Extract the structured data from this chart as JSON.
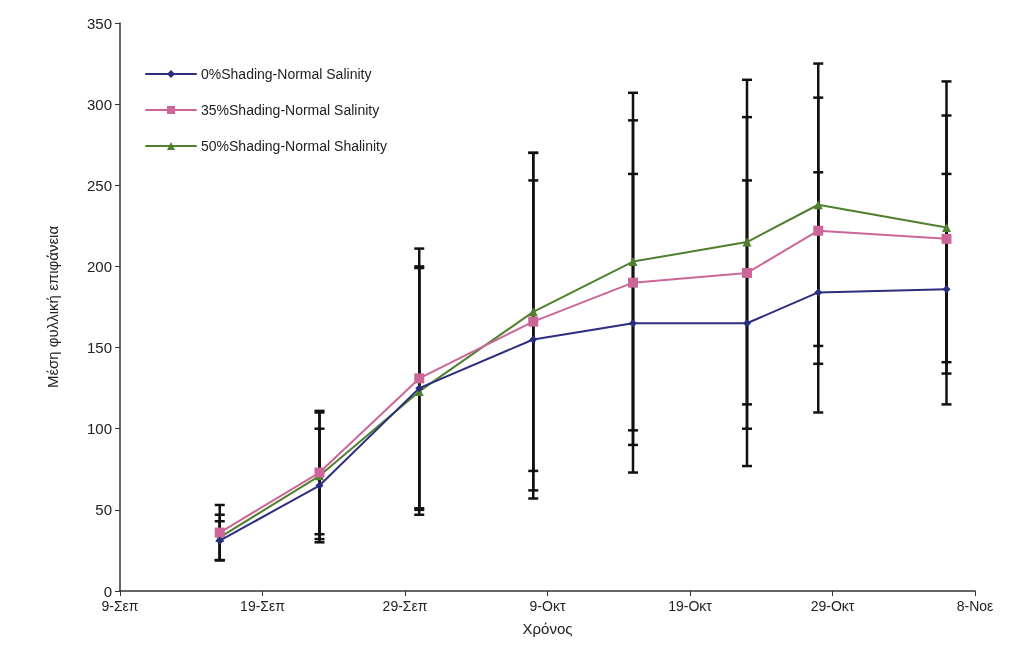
{
  "chart_data": {
    "type": "line",
    "xlabel": "Χρόνος",
    "ylabel": "Μέση φυλλική επιφάνεια",
    "x": [
      "--09-16",
      "--09-23",
      "--09-30",
      "--10-08",
      "--10-15",
      "--10-23",
      "--10-28",
      "--11-06"
    ],
    "series": [
      {
        "name": "0%Shading-Normal Salinity",
        "color": "#2b2d7e",
        "marker": "diamond",
        "values": [
          31,
          65,
          125,
          155,
          165,
          165,
          184,
          186
        ],
        "errors": [
          12,
          35,
          75,
          98,
          92,
          88,
          74,
          71
        ]
      },
      {
        "name": "35%Shading-Normal Salinity",
        "color": "#cc6699",
        "marker": "square",
        "values": [
          36,
          73,
          131,
          166,
          190,
          196,
          222,
          217
        ],
        "errors": [
          17,
          38,
          80,
          104,
          100,
          96,
          82,
          76
        ]
      },
      {
        "name": "50%Shading-Normal Shalinity",
        "color": "#4f7f2f",
        "marker": "triangle",
        "values": [
          33,
          71,
          123,
          172,
          203,
          215,
          238,
          224
        ],
        "errors": [
          14,
          39,
          76,
          98,
          104,
          100,
          87,
          90
        ]
      }
    ],
    "xlim": [
      "--09-09",
      "--11-08"
    ],
    "xticks": [
      {
        "value": "--09-09",
        "label": "9-Σεπ"
      },
      {
        "value": "--09-19",
        "label": "19-Σεπ"
      },
      {
        "value": "--09-29",
        "label": "29-Σεπ"
      },
      {
        "value": "--10-09",
        "label": "9-Οκτ"
      },
      {
        "value": "--10-19",
        "label": "19-Οκτ"
      },
      {
        "value": "--10-29",
        "label": "29-Οκτ"
      },
      {
        "value": "--11-08",
        "label": "8-Νοε"
      }
    ],
    "ylim": [
      0,
      350
    ],
    "yticks": [
      0,
      50,
      100,
      150,
      200,
      250,
      300,
      350
    ],
    "grid": false,
    "legend": "top left",
    "line_style": "solid"
  }
}
